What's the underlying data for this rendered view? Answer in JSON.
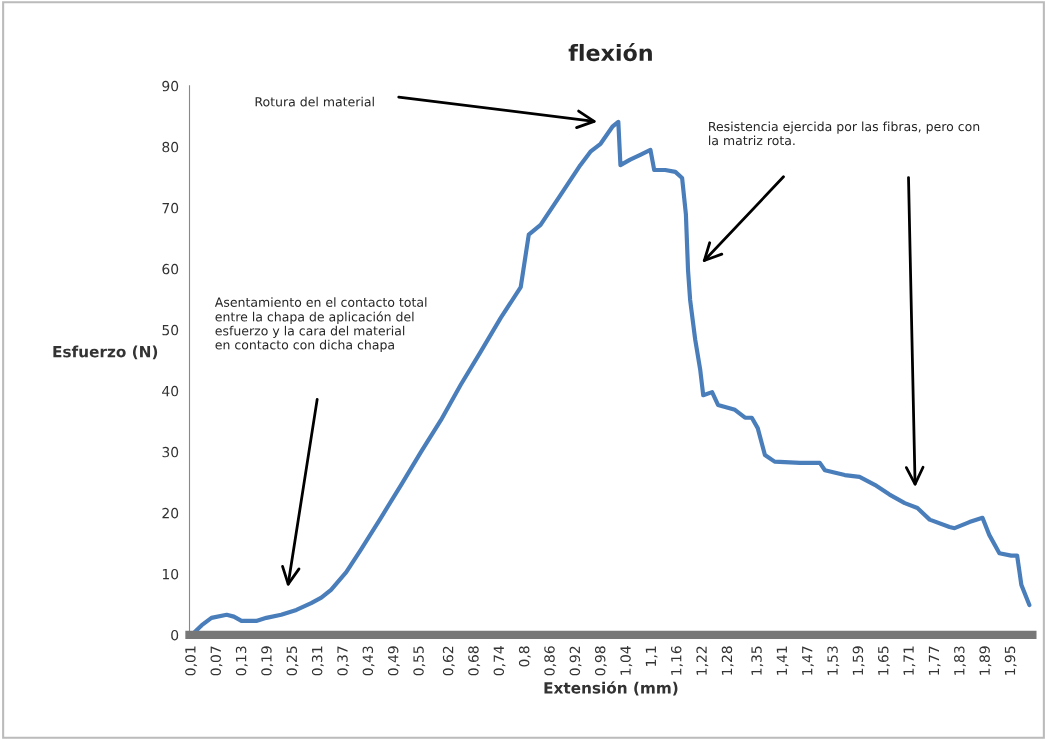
{
  "chart_data": {
    "type": "line",
    "title": "flexión",
    "xlabel": "Extensión (mm)",
    "ylabel": "Esfuerzo (N)",
    "x": [
      0.01,
      0.034,
      0.057,
      0.093,
      0.11,
      0.128,
      0.163,
      0.187,
      0.222,
      0.258,
      0.293,
      0.317,
      0.34,
      0.376,
      0.41,
      0.458,
      0.506,
      0.553,
      0.6,
      0.647,
      0.694,
      0.742,
      0.789,
      0.808,
      0.836,
      0.883,
      0.93,
      0.954,
      0.978,
      1.006,
      1.02,
      1.025,
      1.048,
      1.072,
      1.096,
      1.105,
      1.131,
      1.155,
      1.171,
      1.18,
      1.185,
      1.19,
      1.202,
      1.214,
      1.221,
      1.242,
      1.256,
      1.296,
      1.32,
      1.336,
      1.35,
      1.367,
      1.39,
      1.45,
      1.497,
      1.509,
      1.556,
      1.591,
      1.627,
      1.662,
      1.698,
      1.728,
      1.757,
      1.804,
      1.816,
      1.851,
      1.882,
      1.898,
      1.922,
      1.95,
      1.964,
      1.974,
      1.993
    ],
    "series": [
      {
        "color": "#4a7ebb",
        "values": [
          0,
          1.6,
          2.8,
          3.3,
          3.0,
          2.3,
          2.3,
          2.8,
          3.3,
          4.1,
          5.2,
          6.1,
          7.4,
          10.3,
          13.9,
          19.2,
          24.6,
          30,
          35.2,
          41,
          46.4,
          52,
          57,
          65.6,
          67.2,
          72.1,
          77,
          79.2,
          80.5,
          83.3,
          84.1,
          77,
          77.9,
          78.7,
          79.5,
          76.2,
          76.2,
          75.9,
          74.9,
          68.9,
          59.8,
          54.9,
          48.4,
          43.4,
          39.3,
          39.8,
          37.7,
          36.9,
          35.6,
          35.6,
          33.9,
          29.5,
          28.4,
          28.2,
          28.2,
          27,
          26.2,
          25.9,
          24.6,
          23,
          21.6,
          20.8,
          18.9,
          17.7,
          17.5,
          18.5,
          19.2,
          16.4,
          13.4,
          13,
          13,
          8.2,
          4.9
        ]
      }
    ],
    "xlim": [
      0.005,
      2.0
    ],
    "ylim": [
      0,
      90
    ],
    "yticks": [
      0,
      10,
      20,
      30,
      40,
      50,
      60,
      70,
      80,
      90
    ],
    "xticks": [
      {
        "value": 0.01,
        "label": "0,01"
      },
      {
        "value": 0.07,
        "label": "0,07"
      },
      {
        "value": 0.13,
        "label": "0,13"
      },
      {
        "value": 0.19,
        "label": "0,19"
      },
      {
        "value": 0.25,
        "label": "0,25"
      },
      {
        "value": 0.31,
        "label": "0,31"
      },
      {
        "value": 0.37,
        "label": "0,37"
      },
      {
        "value": 0.43,
        "label": "0,43"
      },
      {
        "value": 0.49,
        "label": "0,49"
      },
      {
        "value": 0.55,
        "label": "0,55"
      },
      {
        "value": 0.62,
        "label": "0,62"
      },
      {
        "value": 0.68,
        "label": "0,68"
      },
      {
        "value": 0.74,
        "label": "0,74"
      },
      {
        "value": 0.8,
        "label": "0,8"
      },
      {
        "value": 0.86,
        "label": "0,86"
      },
      {
        "value": 0.92,
        "label": "0,92"
      },
      {
        "value": 0.98,
        "label": "0,98"
      },
      {
        "value": 1.04,
        "label": "1,04"
      },
      {
        "value": 1.1,
        "label": "1,1"
      },
      {
        "value": 1.16,
        "label": "1,16"
      },
      {
        "value": 1.22,
        "label": "1,22"
      },
      {
        "value": 1.28,
        "label": "1,28"
      },
      {
        "value": 1.35,
        "label": "1,35"
      },
      {
        "value": 1.41,
        "label": "1,41"
      },
      {
        "value": 1.47,
        "label": "1,47"
      },
      {
        "value": 1.53,
        "label": "1,53"
      },
      {
        "value": 1.59,
        "label": "1,59"
      },
      {
        "value": 1.65,
        "label": "1,65"
      },
      {
        "value": 1.71,
        "label": "1,71"
      },
      {
        "value": 1.77,
        "label": "1,77"
      },
      {
        "value": 1.83,
        "label": "1,83"
      },
      {
        "value": 1.89,
        "label": "1,89"
      },
      {
        "value": 1.95,
        "label": "1,95"
      }
    ],
    "grid": false,
    "legend": false,
    "marker": "none",
    "line_style": "solid",
    "annotations": [
      "Rotura del material",
      "Asentamiento en el contacto total\nentre la chapa de aplicación del\nesfuerzo y la cara del material\nen contacto con dicha chapa",
      "Resistencia ejercida por las fibras, pero con\nla matriz rota."
    ]
  }
}
